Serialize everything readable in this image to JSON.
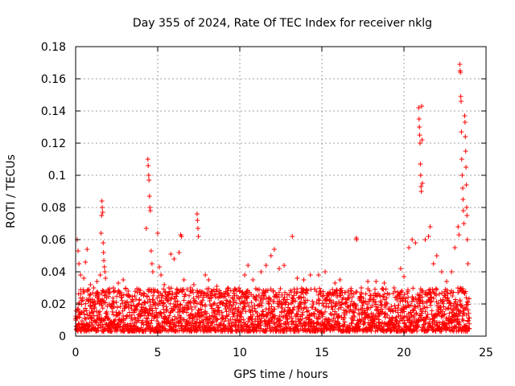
{
  "chart_data": {
    "type": "scatter",
    "title": "Day 355 of 2024, Rate Of TEC Index for receiver nklg",
    "xlabel": "GPS time / hours",
    "ylabel": "ROTI / TECUs",
    "xlim": [
      0,
      25
    ],
    "ylim": [
      0,
      0.18
    ],
    "x_ticks": [
      0,
      5,
      10,
      15,
      20,
      25
    ],
    "x_tick_labels": [
      "0",
      "5",
      "10",
      "15",
      "20",
      "25"
    ],
    "y_ticks": [
      0,
      0.02,
      0.04,
      0.06,
      0.08,
      0.1,
      0.12,
      0.14,
      0.16,
      0.18
    ],
    "y_tick_labels": [
      "0",
      "0.02",
      "0.04",
      "0.06",
      "0.08",
      "0.1",
      "0.12",
      "0.14",
      "0.16",
      "0.18"
    ],
    "grid": true,
    "marker": "+",
    "series": [
      {
        "name": "ROTI",
        "color": "#ff0000",
        "background_band": {
          "description": "dense continuous scatter of points between ~0.003 and ~0.03 TECU across 0-24 h",
          "x_range": [
            0,
            24
          ],
          "y_range": [
            0.003,
            0.03
          ]
        },
        "points": [
          {
            "x": 0.1,
            "y": 0.06
          },
          {
            "x": 0.15,
            "y": 0.053
          },
          {
            "x": 0.2,
            "y": 0.045
          },
          {
            "x": 0.3,
            "y": 0.038
          },
          {
            "x": 0.5,
            "y": 0.036
          },
          {
            "x": 0.6,
            "y": 0.046
          },
          {
            "x": 0.7,
            "y": 0.054
          },
          {
            "x": 0.9,
            "y": 0.032
          },
          {
            "x": 1.1,
            "y": 0.03
          },
          {
            "x": 1.3,
            "y": 0.034
          },
          {
            "x": 1.5,
            "y": 0.038
          },
          {
            "x": 1.55,
            "y": 0.064
          },
          {
            "x": 1.58,
            "y": 0.075
          },
          {
            "x": 1.6,
            "y": 0.084
          },
          {
            "x": 1.62,
            "y": 0.08
          },
          {
            "x": 1.65,
            "y": 0.077
          },
          {
            "x": 1.68,
            "y": 0.058
          },
          {
            "x": 1.7,
            "y": 0.052
          },
          {
            "x": 1.72,
            "y": 0.047
          },
          {
            "x": 1.75,
            "y": 0.043
          },
          {
            "x": 1.78,
            "y": 0.04
          },
          {
            "x": 1.82,
            "y": 0.036
          },
          {
            "x": 2.0,
            "y": 0.028
          },
          {
            "x": 2.3,
            "y": 0.03
          },
          {
            "x": 2.6,
            "y": 0.033
          },
          {
            "x": 2.9,
            "y": 0.035
          },
          {
            "x": 3.2,
            "y": 0.028
          },
          {
            "x": 3.6,
            "y": 0.025
          },
          {
            "x": 4.3,
            "y": 0.067
          },
          {
            "x": 4.4,
            "y": 0.11
          },
          {
            "x": 4.42,
            "y": 0.106
          },
          {
            "x": 4.45,
            "y": 0.1
          },
          {
            "x": 4.47,
            "y": 0.097
          },
          {
            "x": 4.5,
            "y": 0.087
          },
          {
            "x": 4.52,
            "y": 0.08
          },
          {
            "x": 4.55,
            "y": 0.078
          },
          {
            "x": 4.6,
            "y": 0.053
          },
          {
            "x": 4.65,
            "y": 0.045
          },
          {
            "x": 4.7,
            "y": 0.04
          },
          {
            "x": 5.0,
            "y": 0.064
          },
          {
            "x": 5.1,
            "y": 0.043
          },
          {
            "x": 5.2,
            "y": 0.038
          },
          {
            "x": 5.4,
            "y": 0.032
          },
          {
            "x": 5.8,
            "y": 0.051
          },
          {
            "x": 6.0,
            "y": 0.048
          },
          {
            "x": 6.3,
            "y": 0.052
          },
          {
            "x": 6.4,
            "y": 0.063
          },
          {
            "x": 6.45,
            "y": 0.062
          },
          {
            "x": 6.6,
            "y": 0.035
          },
          {
            "x": 7.0,
            "y": 0.03
          },
          {
            "x": 7.2,
            "y": 0.032
          },
          {
            "x": 7.4,
            "y": 0.076
          },
          {
            "x": 7.42,
            "y": 0.072
          },
          {
            "x": 7.45,
            "y": 0.067
          },
          {
            "x": 7.48,
            "y": 0.062
          },
          {
            "x": 7.9,
            "y": 0.038
          },
          {
            "x": 8.1,
            "y": 0.035
          },
          {
            "x": 8.6,
            "y": 0.031
          },
          {
            "x": 9.3,
            "y": 0.03
          },
          {
            "x": 10.3,
            "y": 0.038
          },
          {
            "x": 10.5,
            "y": 0.044
          },
          {
            "x": 10.8,
            "y": 0.035
          },
          {
            "x": 11.3,
            "y": 0.04
          },
          {
            "x": 11.6,
            "y": 0.044
          },
          {
            "x": 11.9,
            "y": 0.05
          },
          {
            "x": 12.1,
            "y": 0.054
          },
          {
            "x": 12.4,
            "y": 0.042
          },
          {
            "x": 12.7,
            "y": 0.044
          },
          {
            "x": 13.2,
            "y": 0.062
          },
          {
            "x": 13.5,
            "y": 0.036
          },
          {
            "x": 13.9,
            "y": 0.035
          },
          {
            "x": 14.3,
            "y": 0.038
          },
          {
            "x": 14.8,
            "y": 0.038
          },
          {
            "x": 15.2,
            "y": 0.04
          },
          {
            "x": 15.8,
            "y": 0.033
          },
          {
            "x": 16.1,
            "y": 0.035
          },
          {
            "x": 16.6,
            "y": 0.028
          },
          {
            "x": 17.1,
            "y": 0.061
          },
          {
            "x": 17.12,
            "y": 0.06
          },
          {
            "x": 17.4,
            "y": 0.03
          },
          {
            "x": 17.8,
            "y": 0.034
          },
          {
            "x": 18.3,
            "y": 0.034
          },
          {
            "x": 18.8,
            "y": 0.033
          },
          {
            "x": 19.4,
            "y": 0.03
          },
          {
            "x": 19.8,
            "y": 0.042
          },
          {
            "x": 20.0,
            "y": 0.037
          },
          {
            "x": 20.3,
            "y": 0.055
          },
          {
            "x": 20.5,
            "y": 0.06
          },
          {
            "x": 20.7,
            "y": 0.058
          },
          {
            "x": 20.9,
            "y": 0.142
          },
          {
            "x": 20.92,
            "y": 0.135
          },
          {
            "x": 20.94,
            "y": 0.13
          },
          {
            "x": 20.96,
            "y": 0.125
          },
          {
            "x": 20.98,
            "y": 0.12
          },
          {
            "x": 21.0,
            "y": 0.107
          },
          {
            "x": 21.02,
            "y": 0.1
          },
          {
            "x": 21.04,
            "y": 0.093
          },
          {
            "x": 21.06,
            "y": 0.09
          },
          {
            "x": 21.08,
            "y": 0.143
          },
          {
            "x": 21.1,
            "y": 0.122
          },
          {
            "x": 21.12,
            "y": 0.095
          },
          {
            "x": 21.3,
            "y": 0.06
          },
          {
            "x": 21.5,
            "y": 0.062
          },
          {
            "x": 21.6,
            "y": 0.068
          },
          {
            "x": 21.8,
            "y": 0.045
          },
          {
            "x": 22.0,
            "y": 0.05
          },
          {
            "x": 22.3,
            "y": 0.04
          },
          {
            "x": 22.6,
            "y": 0.034
          },
          {
            "x": 22.9,
            "y": 0.04
          },
          {
            "x": 23.1,
            "y": 0.055
          },
          {
            "x": 23.4,
            "y": 0.169
          },
          {
            "x": 23.42,
            "y": 0.165
          },
          {
            "x": 23.44,
            "y": 0.164
          },
          {
            "x": 23.46,
            "y": 0.149
          },
          {
            "x": 23.48,
            "y": 0.146
          },
          {
            "x": 23.3,
            "y": 0.068
          },
          {
            "x": 23.35,
            "y": 0.063
          },
          {
            "x": 23.5,
            "y": 0.127
          },
          {
            "x": 23.52,
            "y": 0.11
          },
          {
            "x": 23.55,
            "y": 0.1
          },
          {
            "x": 23.58,
            "y": 0.092
          },
          {
            "x": 23.6,
            "y": 0.085
          },
          {
            "x": 23.62,
            "y": 0.078
          },
          {
            "x": 23.65,
            "y": 0.07
          },
          {
            "x": 23.7,
            "y": 0.137
          },
          {
            "x": 23.72,
            "y": 0.133
          },
          {
            "x": 23.74,
            "y": 0.124
          },
          {
            "x": 23.76,
            "y": 0.115
          },
          {
            "x": 23.78,
            "y": 0.105
          },
          {
            "x": 23.8,
            "y": 0.094
          },
          {
            "x": 23.82,
            "y": 0.08
          },
          {
            "x": 23.84,
            "y": 0.075
          },
          {
            "x": 23.86,
            "y": 0.06
          },
          {
            "x": 23.9,
            "y": 0.045
          }
        ]
      }
    ]
  }
}
